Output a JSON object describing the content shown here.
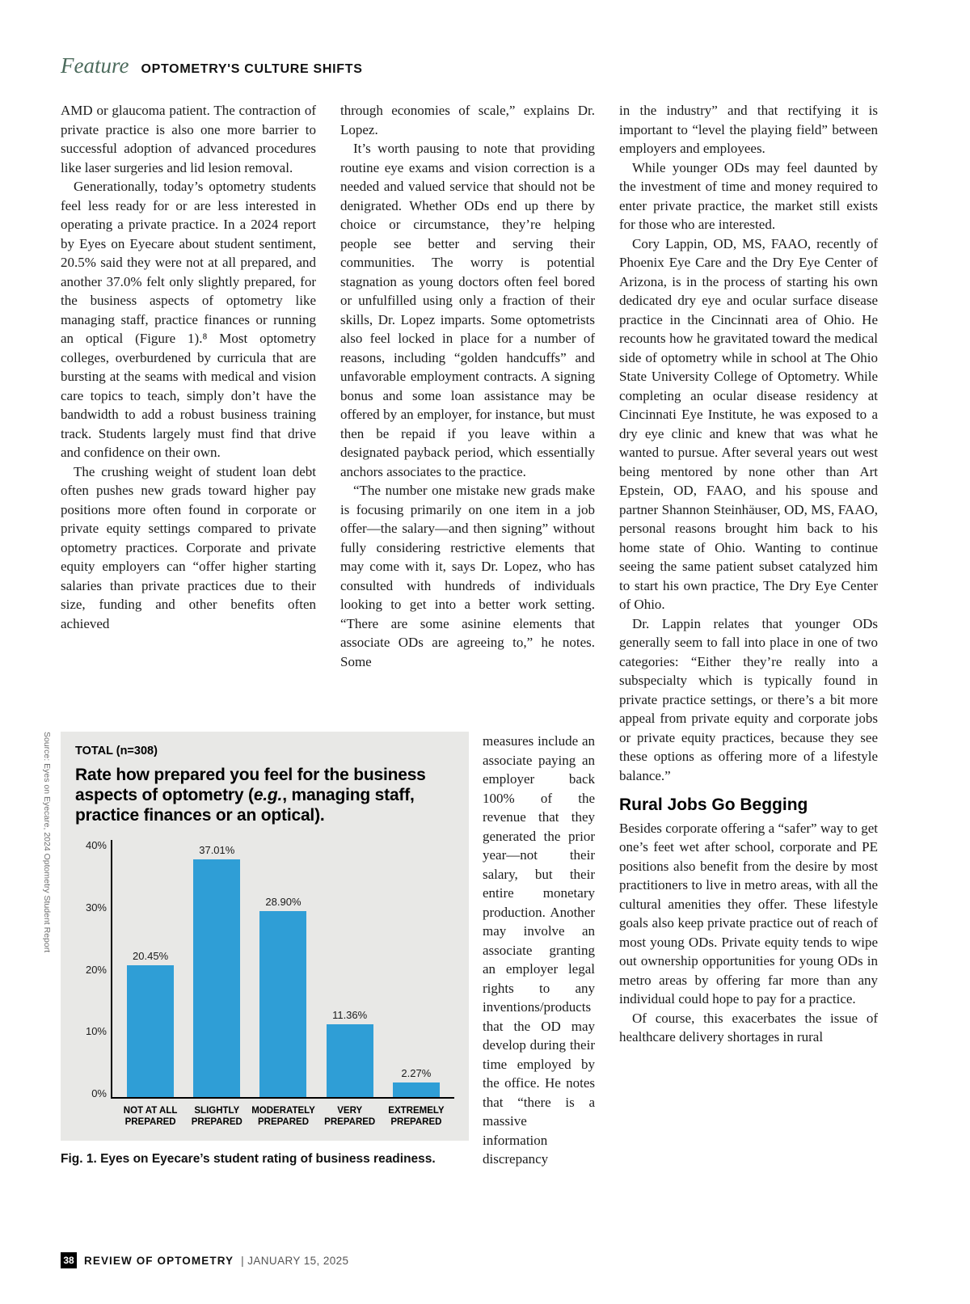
{
  "header": {
    "feature_label": "Feature",
    "article_title": "OPTOMETRY'S CULTURE SHIFTS"
  },
  "columns": {
    "col1": {
      "paragraphs": [
        "AMD or glaucoma patient. The contraction of private practice is also one more barrier to successful adoption of advanced procedures like laser surgeries and lid lesion removal.",
        "Generationally, today’s optometry students feel less ready for or are less interested in operating a private practice. In a 2024 report by Eyes on Eyecare about student sentiment, 20.5% said they were not at all prepared, and another 37.0% felt only slightly prepared, for the business aspects of optometry like managing staff, practice finances or running an optical (Figure 1).⁸ Most optometry colleges, overburdened by curricula that are bursting at the seams with medical and vision care topics to teach, simply don’t have the bandwidth to add a robust business training track. Students largely must find that drive and confidence on their own.",
        "The crushing weight of student loan debt often pushes new grads toward higher pay positions more often found in corporate or private equity settings compared to private optometry practices. Corporate and private equity employers can “offer higher starting salaries than private practices due to their size, funding and other benefits often achieved"
      ]
    },
    "col2": {
      "paragraphs": [
        "through economies of scale,” explains Dr. Lopez.",
        "It’s worth pausing to note that providing routine eye exams and vision correction is a needed and valued service that should not be denigrated. Whether ODs end up there by choice or circumstance, they’re helping people see better and serving their communities. The worry is potential stagnation as young doctors often feel bored or unfulfilled using only a fraction of their skills, Dr. Lopez imparts. Some optometrists also feel locked in place for a number of reasons, including “golden handcuffs” and unfavorable employment contracts. A signing bonus and some loan assistance may be offered by an employer, for instance, but must then be repaid if you leave within a designated payback period, which essentially anchors associates to the practice.",
        "“The number one mistake new grads make is focusing primarily on one item in a job offer—the salary—and then signing” without fully considering restrictive elements that may come with it, says Dr. Lopez, who has consulted with hundreds of individuals looking to get into a better work setting. “There are some asinine elements that associate ODs are agreeing to,” he notes. Some"
      ],
      "narrow_continuation": "measures include an associate paying an employer back 100% of the revenue that they generated the prior year—not their salary, but their entire monetary production. Another may involve an associate granting an employer legal rights to any inventions/products that the OD may develop during their time employed by the office. He notes that “there is a massive information discrepancy"
    },
    "col3": {
      "paragraphs_before_heading": [
        "in the industry” and that rectifying it is important to “level the playing field” between employers and employees.",
        "While younger ODs may feel daunted by the investment of time and money required to enter private practice, the market still exists for those who are interested.",
        "Cory Lappin, OD, MS, FAAO, recently of Phoenix Eye Care and the Dry Eye Center of Arizona, is in the process of starting his own dedicated dry eye and ocular surface disease practice in the Cincinnati area of Ohio. He recounts how he gravitated toward the medical side of optometry while in school at The Ohio State University College of Optometry. While completing an ocular disease residency at Cincinnati Eye Institute, he was exposed to a dry eye clinic and knew that was what he wanted to pursue. After several years out west being mentored by none other than Art Epstein, OD, FAAO, and his spouse and partner Shannon Steinhäuser, OD, MS, FAAO, personal reasons brought him back to his home state of Ohio. Wanting to continue seeing the same patient subset catalyzed him to start his own practice, The Dry Eye Center of Ohio.",
        "Dr. Lappin relates that younger ODs generally seem to fall into place in one of two categories: “Either they’re really into a subspecialty which is typically found in private practice settings, or there’s a bit more appeal from private equity and corporate jobs or private equity practices, because they see these options as offering more of a lifestyle balance.”"
      ],
      "section_heading": "Rural Jobs Go Begging",
      "paragraphs_after_heading": [
        "Besides corporate offering a “safer” way to get one’s feet wet after school, corporate and PE positions also benefit from the desire by most practitioners to live in metro areas, with all the cultural amenities they offer. These lifestyle goals also keep private practice out of reach of most young ODs. Private equity tends to wipe out ownership opportunities for young ODs in metro areas by offering far more than any individual could hope to pay for a practice.",
        "Of course, this exacerbates the issue of healthcare delivery shortages in rural"
      ]
    }
  },
  "chart_data": {
    "type": "bar",
    "total_label": "TOTAL (n=308)",
    "title": "Rate how prepared you feel for the business aspects of optometry (e.g., managing staff, practice finances or an optical).",
    "title_parts": {
      "before": "Rate how prepared you feel for the business aspects of optometry (",
      "italic": "e.g.",
      "after": ", managing staff, practice finances or an optical)."
    },
    "categories": [
      "NOT AT ALL PREPARED",
      "SLIGHTLY PREPARED",
      "MODERATELY PREPARED",
      "VERY PREPARED",
      "EXTREMELY PREPARED"
    ],
    "values": [
      20.45,
      37.01,
      28.9,
      11.36,
      2.27
    ],
    "value_labels": [
      "20.45%",
      "37.01%",
      "28.90%",
      "11.36%",
      "2.27%"
    ],
    "y_ticks": [
      "40%",
      "30%",
      "20%",
      "10%",
      "0%"
    ],
    "ylim": [
      0,
      40
    ],
    "grid": false,
    "bar_color": "#2f9ed6",
    "source": "Source: Eyes on Eyecare, 2024 Optometry Student Report",
    "caption": "Fig. 1. Eyes on Eyecare’s student rating of business readiness."
  },
  "footer": {
    "page_number": "38",
    "magazine": "REVIEW OF OPTOMETRY",
    "issue_date": "| JANUARY 15, 2025"
  }
}
